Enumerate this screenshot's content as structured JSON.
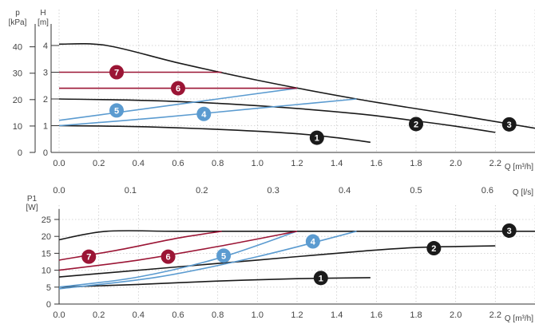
{
  "colors": {
    "black": "#1a1a1a",
    "blue": "#5b9bd0",
    "red": "#9b1535",
    "grid": "#c9c9c9",
    "text": "#444444"
  },
  "chart_data": [
    {
      "type": "line",
      "panel": "head",
      "x_axis": {
        "label": "Q [m³/h]",
        "range": [
          0,
          2.4
        ],
        "ticks": [
          "0.0",
          "0.2",
          "0.4",
          "0.6",
          "0.8",
          "1.0",
          "1.2",
          "1.4",
          "1.6",
          "1.8",
          "2.0",
          "2.2"
        ]
      },
      "y_axis_left": {
        "label_top": "p",
        "label_bottom": "[kPa]",
        "range": [
          0,
          45
        ],
        "ticks": [
          "0",
          "10",
          "20",
          "30",
          "40"
        ]
      },
      "y_axis_right": {
        "label_top": "H",
        "label_bottom": "[m]",
        "range": [
          0,
          4.5
        ],
        "ticks": [
          "0",
          "1",
          "2",
          "3",
          "4"
        ]
      },
      "secondary_x_axis": {
        "label": "Q [l/s]",
        "ticks": [
          "0.0",
          "0.1",
          "0.2",
          "0.3",
          "0.4",
          "0.5",
          "0.6"
        ]
      },
      "grid": true,
      "series": [
        {
          "name": "1",
          "color": "black",
          "x": [
            0,
            0.3,
            0.6,
            0.9,
            1.2,
            1.4,
            1.57
          ],
          "y": [
            1.0,
            0.98,
            0.92,
            0.83,
            0.7,
            0.55,
            0.38
          ]
        },
        {
          "name": "2",
          "color": "black",
          "x": [
            0,
            0.5,
            1.0,
            1.5,
            1.8,
            2.0,
            2.2
          ],
          "y": [
            2.0,
            1.93,
            1.75,
            1.45,
            1.18,
            0.98,
            0.75
          ]
        },
        {
          "name": "3",
          "color": "black",
          "x": [
            0,
            0.24,
            0.6,
            1.0,
            1.5,
            2.0,
            2.42
          ],
          "y": [
            4.05,
            4.0,
            3.35,
            2.7,
            2.0,
            1.4,
            0.88
          ]
        },
        {
          "name": "4",
          "color": "blue",
          "x": [
            0,
            0.5,
            1.0,
            1.5
          ],
          "y": [
            1.0,
            1.3,
            1.65,
            2.0
          ]
        },
        {
          "name": "5",
          "color": "blue",
          "x": [
            0,
            0.4,
            0.8,
            1.2
          ],
          "y": [
            1.2,
            1.6,
            2.0,
            2.4
          ]
        },
        {
          "name": "6",
          "color": "red",
          "x": [
            0,
            1.2
          ],
          "y": [
            2.4,
            2.4
          ]
        },
        {
          "name": "7",
          "color": "red",
          "x": [
            0,
            0.82
          ],
          "y": [
            3.0,
            3.0
          ]
        }
      ],
      "markers": [
        {
          "label": "1",
          "color": "black",
          "x": 1.3,
          "y": 0.55
        },
        {
          "label": "2",
          "color": "black",
          "x": 1.8,
          "y": 1.06
        },
        {
          "label": "3",
          "color": "black",
          "x": 2.27,
          "y": 1.05
        },
        {
          "label": "4",
          "color": "blue",
          "x": 0.73,
          "y": 1.44
        },
        {
          "label": "5",
          "color": "blue",
          "x": 0.29,
          "y": 1.57
        },
        {
          "label": "6",
          "color": "red",
          "x": 0.6,
          "y": 2.4
        },
        {
          "label": "7",
          "color": "red",
          "x": 0.29,
          "y": 3.0
        }
      ]
    },
    {
      "type": "line",
      "panel": "power",
      "x_axis": {
        "label": "Q [m³/h]",
        "range": [
          0,
          2.4
        ],
        "ticks": [
          "0.0",
          "0.2",
          "0.4",
          "0.6",
          "0.8",
          "1.0",
          "1.2",
          "1.4",
          "1.6",
          "1.8",
          "2.0",
          "2.2"
        ]
      },
      "y_axis_left": {
        "label_top": "P1",
        "label_bottom": "[W]",
        "range": [
          0,
          28
        ],
        "ticks": [
          "0",
          "5",
          "10",
          "15",
          "20",
          "25"
        ]
      },
      "grid": true,
      "series": [
        {
          "name": "1",
          "color": "black",
          "x": [
            0,
            0.4,
            0.8,
            1.2,
            1.57
          ],
          "y": [
            5,
            5.8,
            6.8,
            7.5,
            7.8
          ]
        },
        {
          "name": "2",
          "color": "black",
          "x": [
            0,
            0.5,
            1.0,
            1.5,
            1.8,
            2.2
          ],
          "y": [
            8,
            10.5,
            13,
            15.5,
            16.7,
            17.2
          ]
        },
        {
          "name": "3",
          "color": "black",
          "x": [
            0,
            0.24,
            0.6,
            1.2,
            1.8,
            2.42
          ],
          "y": [
            19,
            21.5,
            21.5,
            21.5,
            21.5,
            21.5
          ]
        },
        {
          "name": "4",
          "color": "blue",
          "x": [
            0,
            0.5,
            1.0,
            1.5
          ],
          "y": [
            4.5,
            8,
            14,
            21.5
          ]
        },
        {
          "name": "5",
          "color": "blue",
          "x": [
            0,
            0.4,
            0.8,
            1.2
          ],
          "y": [
            5,
            8,
            13.5,
            21.5
          ]
        },
        {
          "name": "6",
          "color": "red",
          "x": [
            0,
            0.4,
            0.8,
            1.2
          ],
          "y": [
            10,
            13,
            17,
            21.5
          ]
        },
        {
          "name": "7",
          "color": "red",
          "x": [
            0,
            0.3,
            0.6,
            0.82
          ],
          "y": [
            13,
            16,
            19.5,
            21.5
          ]
        }
      ],
      "markers": [
        {
          "label": "1",
          "color": "black",
          "x": 1.32,
          "y": 7.7
        },
        {
          "label": "2",
          "color": "black",
          "x": 1.89,
          "y": 16.5
        },
        {
          "label": "3",
          "color": "black",
          "x": 2.27,
          "y": 21.7
        },
        {
          "label": "4",
          "color": "blue",
          "x": 1.28,
          "y": 18.5
        },
        {
          "label": "5",
          "color": "blue",
          "x": 0.83,
          "y": 14.3
        },
        {
          "label": "6",
          "color": "red",
          "x": 0.55,
          "y": 14.0
        },
        {
          "label": "7",
          "color": "red",
          "x": 0.15,
          "y": 14.0
        }
      ]
    }
  ]
}
